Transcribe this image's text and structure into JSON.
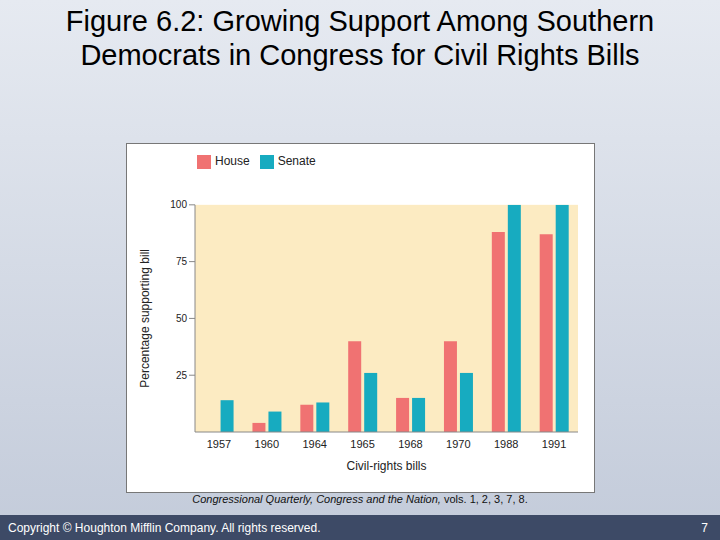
{
  "slide": {
    "title": "Figure 6.2: Growing Support Among Southern Democrats in Congress for Civil Rights Bills",
    "source": [
      "Congressional Quarterly, Congress and the Nation,",
      "vols. 1, 2, 3, 7, 8."
    ],
    "copyright": "Copyright © Houghton Mifflin Company. All rights reserved.",
    "page": "7"
  },
  "chart_data": {
    "type": "bar",
    "categories": [
      "1957",
      "1960",
      "1964",
      "1965",
      "1968",
      "1970",
      "1988",
      "1991"
    ],
    "series": [
      {
        "name": "House",
        "color": "#f07272",
        "values": [
          null,
          4,
          12,
          40,
          15,
          40,
          88,
          87
        ]
      },
      {
        "name": "Senate",
        "color": "#17abc0",
        "values": [
          14,
          9,
          13,
          26,
          15,
          26,
          100,
          100
        ]
      }
    ],
    "x_label": "Civil-rights bills",
    "y_label": "Percentage supporting bill",
    "ylim": [
      0,
      100
    ],
    "yticks": [
      25,
      50,
      75,
      100
    ],
    "grid": false,
    "legend": "top-left"
  }
}
